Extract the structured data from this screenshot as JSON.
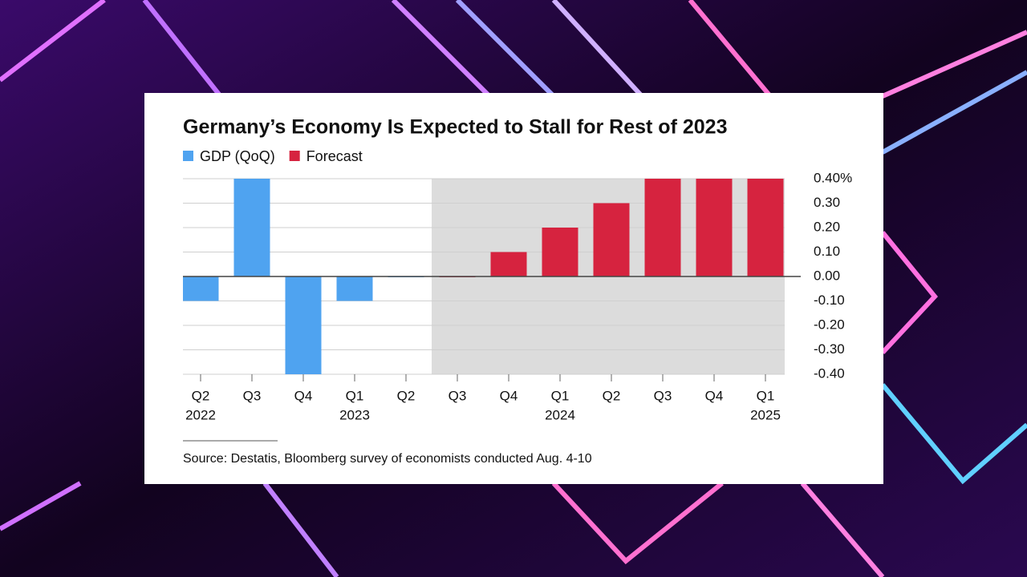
{
  "chart_data": {
    "type": "bar",
    "title": "Germany’s Economy Is Expected to Stall for Rest of 2023",
    "source": "Source: Destatis, Bloomberg survey of economists conducted Aug. 4-10",
    "categories": [
      "Q2",
      "Q3",
      "Q4",
      "Q1",
      "Q2",
      "Q3",
      "Q4",
      "Q1",
      "Q2",
      "Q3",
      "Q4",
      "Q1"
    ],
    "years": [
      "2022",
      null,
      null,
      "2023",
      null,
      null,
      null,
      "2024",
      null,
      null,
      null,
      "2025"
    ],
    "series": [
      {
        "name": "GDP (QoQ)",
        "color": "#4fa3f0",
        "values": [
          -0.1,
          0.4,
          -0.4,
          -0.1,
          0.0,
          null,
          null,
          null,
          null,
          null,
          null,
          null
        ]
      },
      {
        "name": "Forecast",
        "color": "#d6233f",
        "values": [
          null,
          null,
          null,
          null,
          null,
          0.0,
          0.1,
          0.2,
          0.3,
          0.4,
          0.4,
          0.4
        ]
      }
    ],
    "ylim": [
      -0.4,
      0.4
    ],
    "yticks": [
      {
        "value": 0.4,
        "label": "0.40%"
      },
      {
        "value": 0.3,
        "label": "0.30"
      },
      {
        "value": 0.2,
        "label": "0.20"
      },
      {
        "value": 0.1,
        "label": "0.10"
      },
      {
        "value": 0,
        "label": "0.00"
      },
      {
        "value": -0.1,
        "label": "-0.10"
      },
      {
        "value": -0.2,
        "label": "-0.20"
      },
      {
        "value": -0.3,
        "label": "-0.30"
      },
      {
        "value": -0.4,
        "label": "-0.40"
      }
    ],
    "grid": true
  }
}
